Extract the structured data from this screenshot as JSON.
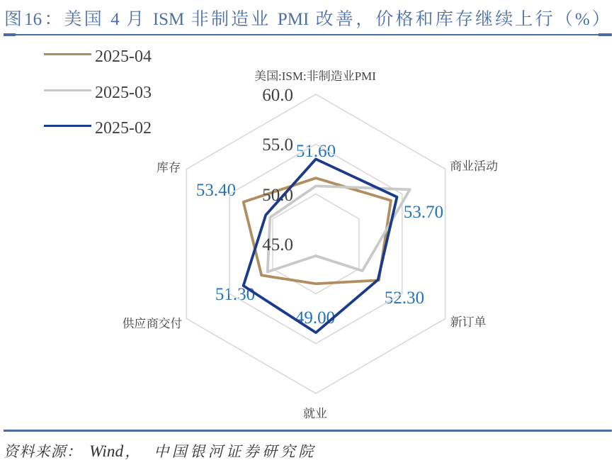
{
  "figure": {
    "title": "图16：美国 4 月 ISM 非制造业 PMI 改善，价格和库存继续上行（%）",
    "source": {
      "prefix": "资料来源：",
      "vendor": "Wind",
      "separator": "，",
      "org": "中国银河证券研究院"
    }
  },
  "colors": {
    "title_text": "#4C70A8",
    "rule": "#4D6CA3",
    "body_text": "#404040",
    "grid": "#DBDBDB",
    "data_label_text": "#2273B9"
  },
  "legend": {
    "position": "upper-left",
    "items": [
      {
        "label": "2025-04",
        "color": "#B18E5F"
      },
      {
        "label": "2025-03",
        "color": "#C9C9C9"
      },
      {
        "label": "2025-02",
        "color": "#1A3A8C"
      }
    ]
  },
  "chart_data": {
    "type": "radar",
    "title": "美国:ISM:非制造业PMI",
    "categories": [
      "美国:ISM:非制造业PMI",
      "商业活动",
      "新订单",
      "就业",
      "供应商交付",
      "库存"
    ],
    "series": [
      {
        "name": "2025-04",
        "color": "#B18E5F",
        "values": [
          51.6,
          53.7,
          52.3,
          49.0,
          51.3,
          53.4
        ]
      },
      {
        "name": "2025-03",
        "color": "#C9C9C9",
        "values": [
          50.8,
          55.9,
          50.4,
          46.2,
          50.6,
          50.3
        ]
      },
      {
        "name": "2025-02",
        "color": "#1A3A8C",
        "values": [
          53.5,
          54.4,
          52.2,
          53.9,
          53.4,
          50.8
        ]
      }
    ],
    "radial_axis": {
      "min": 45,
      "max": 60,
      "step": 5,
      "tick_labels": [
        "60.0",
        "55.0",
        "50.0",
        "45.0"
      ]
    },
    "point_labels": {
      "of_series": "2025-04",
      "values": [
        "51.60",
        "53.70",
        "52.30",
        "49.00",
        "51.30",
        "53.40"
      ]
    },
    "grid": true,
    "legend_position": "upper-left"
  }
}
